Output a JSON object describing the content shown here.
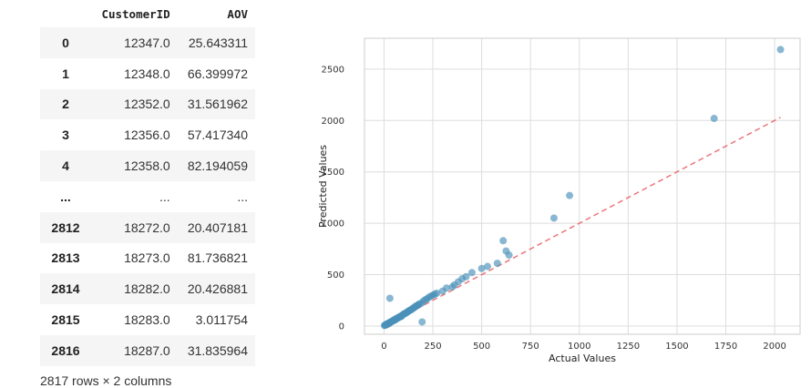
{
  "table": {
    "columns": [
      "CustomerID",
      "AOV"
    ],
    "rows": [
      {
        "index": "0",
        "customer_id": "12347.0",
        "aov": "25.643311"
      },
      {
        "index": "1",
        "customer_id": "12348.0",
        "aov": "66.399972"
      },
      {
        "index": "2",
        "customer_id": "12352.0",
        "aov": "31.561962"
      },
      {
        "index": "3",
        "customer_id": "12356.0",
        "aov": "57.417340"
      },
      {
        "index": "4",
        "customer_id": "12358.0",
        "aov": "82.194059"
      },
      {
        "index": "...",
        "customer_id": "...",
        "aov": "..."
      },
      {
        "index": "2812",
        "customer_id": "18272.0",
        "aov": "20.407181"
      },
      {
        "index": "2813",
        "customer_id": "18273.0",
        "aov": "81.736821"
      },
      {
        "index": "2814",
        "customer_id": "18282.0",
        "aov": "20.426881"
      },
      {
        "index": "2815",
        "customer_id": "18283.0",
        "aov": "3.011754"
      },
      {
        "index": "2816",
        "customer_id": "18287.0",
        "aov": "31.835964"
      }
    ],
    "shape_text": "2817 rows × 2 columns"
  },
  "chart_data": {
    "type": "scatter",
    "title": "",
    "xlabel": "Actual Values",
    "ylabel": "Predicted Values",
    "xlim": [
      -100,
      2130
    ],
    "ylim": [
      -80,
      2800
    ],
    "xticks": [
      0,
      250,
      500,
      750,
      1000,
      1250,
      1500,
      1750,
      2000
    ],
    "yticks": [
      0,
      500,
      1000,
      1500,
      2000,
      2500
    ],
    "grid": true,
    "point_color": "#4a90b8",
    "reference_line": {
      "x": [
        0,
        2030
      ],
      "y": [
        0,
        2030
      ],
      "style": "dashed",
      "color": "#e8555a"
    },
    "series": [
      {
        "x": [
          2,
          5,
          8,
          10,
          12,
          15,
          18,
          20,
          22,
          25,
          28,
          30,
          33,
          36,
          40,
          42,
          45,
          48,
          50,
          55,
          58,
          60,
          65,
          70,
          72,
          75,
          80,
          85,
          88,
          90,
          95,
          100,
          105,
          110,
          115,
          120,
          125,
          130,
          135,
          140,
          145,
          150,
          155,
          160,
          165,
          170,
          175,
          180,
          190,
          200,
          210,
          220,
          230,
          240,
          250,
          260,
          270,
          300,
          320,
          350,
          360,
          380,
          400,
          420,
          450,
          500,
          530,
          580,
          610,
          625,
          640,
          870,
          950,
          1690,
          2030,
          30,
          195
        ],
        "y": [
          5,
          8,
          10,
          15,
          12,
          18,
          22,
          25,
          20,
          30,
          28,
          35,
          38,
          40,
          45,
          48,
          50,
          52,
          58,
          62,
          60,
          70,
          72,
          80,
          78,
          85,
          90,
          95,
          92,
          100,
          108,
          115,
          120,
          125,
          130,
          138,
          145,
          150,
          155,
          160,
          168,
          175,
          180,
          190,
          195,
          200,
          205,
          215,
          220,
          240,
          255,
          265,
          280,
          290,
          300,
          310,
          320,
          340,
          370,
          380,
          400,
          430,
          460,
          480,
          520,
          560,
          580,
          610,
          830,
          730,
          690,
          1050,
          1270,
          2020,
          2690,
          270,
          40
        ]
      }
    ]
  }
}
